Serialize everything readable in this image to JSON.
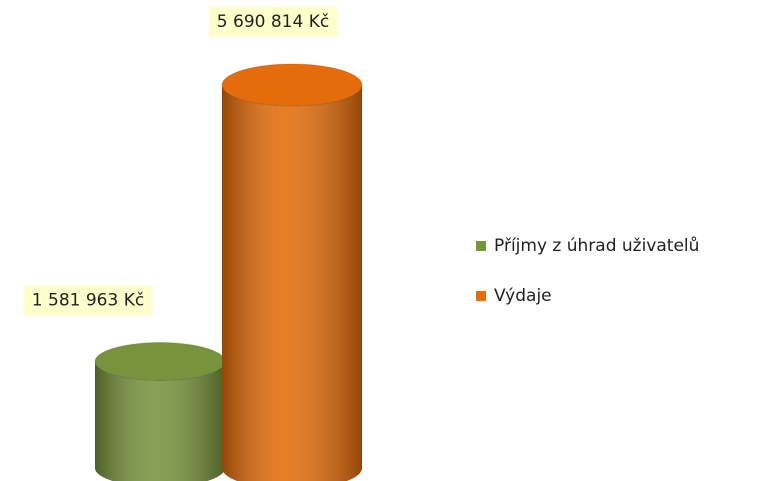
{
  "chart_data": {
    "type": "bar",
    "categories": [
      null
    ],
    "series": [
      {
        "name": "Příjmy z úhrad uživatelů",
        "color": "#77933c",
        "values": [
          1581963
        ],
        "value_labels": [
          "1 581 963 Kč"
        ]
      },
      {
        "name": "Výdaje",
        "color": "#e46c0a",
        "values": [
          5690814
        ],
        "value_labels": [
          "5 690 814 Kč"
        ]
      }
    ],
    "legend": "right"
  }
}
